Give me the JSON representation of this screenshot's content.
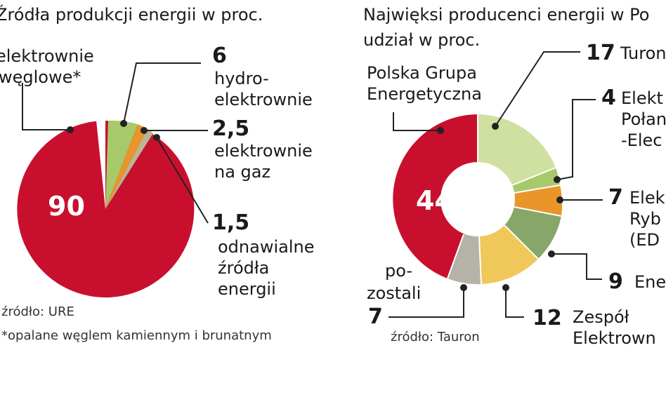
{
  "colors": {
    "red": "#c8102e",
    "light_green": "#a8c96a",
    "orange": "#e8952a",
    "tan": "#b9b595",
    "mid_green": "#86a66a",
    "yellow": "#f0c85a",
    "grey": "#b5b2a8",
    "lime": "#cfe0a0"
  },
  "chart_data": [
    {
      "type": "pie",
      "title": "Źródła produkcji energii w proc.",
      "slices": [
        {
          "label": "elektrownie węglowe*",
          "value": 90,
          "display": "90",
          "color": "#c8102e"
        },
        {
          "label": "hydro-elektrownie",
          "value": 6,
          "display": "6",
          "color": "#a8c96a"
        },
        {
          "label": "elektrownie na gaz",
          "value": 2.5,
          "display": "2,5",
          "color": "#e8952a"
        },
        {
          "label": "odnawialne źródła energii",
          "value": 1.5,
          "display": "1,5",
          "color": "#b9b595"
        }
      ],
      "source": "źródło: URE",
      "footnote": "*opalane węglem kamiennym i brunatnym"
    },
    {
      "type": "pie",
      "title": "Najwięksi producenci energii w Po",
      "subtitle": "udział w proc.",
      "slices": [
        {
          "label": "Polska Grupa Energetyczna",
          "value": 44,
          "display": "44",
          "color": "#c8102e"
        },
        {
          "label": "Turon",
          "value": 17,
          "display": "17",
          "color": "#cfe0a0"
        },
        {
          "label": "Elekt Połan -Elec",
          "value": 4,
          "display": "4",
          "color": "#a8c96a"
        },
        {
          "label": "Elek Ryb (ED",
          "value": 7,
          "display": "7",
          "color": "#e8952a"
        },
        {
          "label": "Ene",
          "value": 9,
          "display": "9",
          "color": "#86a66a"
        },
        {
          "label": "Zespół Elektrown",
          "value": 12,
          "display": "12",
          "color": "#f0c85a"
        },
        {
          "label": "po-zostali",
          "value": 7,
          "display": "7",
          "color": "#b5b2a8"
        }
      ],
      "source": "źródło: Tauron"
    }
  ],
  "left": {
    "title": "Źródła produkcji energii w proc.",
    "coal_l1": "elektrownie",
    "coal_l2": "węglowe*",
    "coal_value": "90",
    "hydro_value": "6",
    "hydro_l1": "hydro-",
    "hydro_l2": "elektrownie",
    "gas_value": "2,5",
    "gas_l1": "elektrownie",
    "gas_l2": "na gaz",
    "renew_value": "1,5",
    "renew_l1": "odnawialne",
    "renew_l2": "źródła",
    "renew_l3": "energii",
    "source": "źródło: URE",
    "footnote": "*opalane węglem kamiennym i brunatnym"
  },
  "right": {
    "title": "Najwięksi producenci energii w Po",
    "subtitle": "udział w proc.",
    "pge_l1": "Polska Grupa",
    "pge_l2": "Energetyczna",
    "pge_value": "44",
    "tauron_value": "17",
    "tauron_name": "Turon",
    "e4_value": "4",
    "e4_l1": "Elekt",
    "e4_l2": "Połan",
    "e4_l3": "-Elec",
    "e7_value": "7",
    "e7_l1": "Elek",
    "e7_l2": "Ryb",
    "e7_l3": "(ED",
    "e9_value": "9",
    "e9_name": "Ene",
    "e12_value": "12",
    "e12_l1": "Zespół",
    "e12_l2": "Elektrown",
    "others_l1": "po-",
    "others_l2": "zostali",
    "others_value": "7",
    "source": "źródło: Tauron"
  }
}
